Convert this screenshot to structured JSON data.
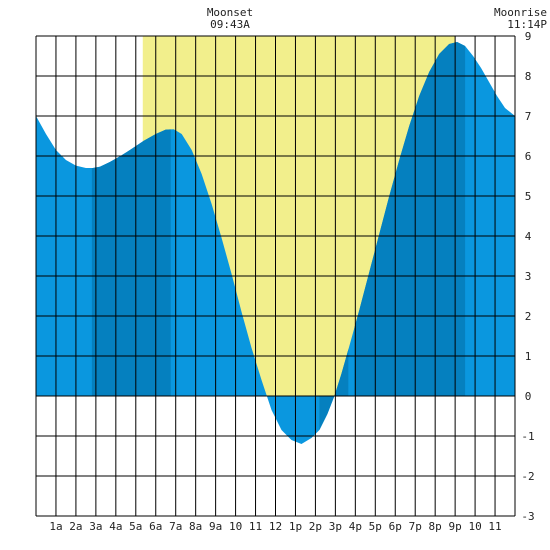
{
  "chart_data": {
    "type": "area",
    "title": "",
    "xlabel": "",
    "ylabel": "",
    "xlim": [
      0,
      24
    ],
    "ylim": [
      -3,
      9
    ],
    "y_ticks": [
      -3,
      -2,
      -1,
      0,
      1,
      2,
      3,
      4,
      5,
      6,
      7,
      8,
      9
    ],
    "x_ticks": [
      {
        "hour": 1,
        "label": "1a"
      },
      {
        "hour": 2,
        "label": "2a"
      },
      {
        "hour": 3,
        "label": "3a"
      },
      {
        "hour": 4,
        "label": "4a"
      },
      {
        "hour": 5,
        "label": "5a"
      },
      {
        "hour": 6,
        "label": "6a"
      },
      {
        "hour": 7,
        "label": "7a"
      },
      {
        "hour": 8,
        "label": "8a"
      },
      {
        "hour": 9,
        "label": "9a"
      },
      {
        "hour": 10,
        "label": "10"
      },
      {
        "hour": 11,
        "label": "11"
      },
      {
        "hour": 12,
        "label": "12"
      },
      {
        "hour": 13,
        "label": "1p"
      },
      {
        "hour": 14,
        "label": "2p"
      },
      {
        "hour": 15,
        "label": "3p"
      },
      {
        "hour": 16,
        "label": "4p"
      },
      {
        "hour": 17,
        "label": "5p"
      },
      {
        "hour": 18,
        "label": "6p"
      },
      {
        "hour": 19,
        "label": "7p"
      },
      {
        "hour": 20,
        "label": "8p"
      },
      {
        "hour": 21,
        "label": "9p"
      },
      {
        "hour": 22,
        "label": "10"
      },
      {
        "hour": 23,
        "label": "11"
      }
    ],
    "grid": true,
    "daylight": {
      "start_hour": 5.35,
      "end_hour": 21.0,
      "color": "#f2ef8c"
    },
    "night_shade_color": "#ffffff",
    "tide_color": "#0a97df",
    "tide_highlight_color": "#0580bf",
    "highlight_bands": [
      [
        2.8,
        6.75
      ],
      [
        14.2,
        15.65
      ],
      [
        15.95,
        21.5
      ]
    ],
    "series": [
      {
        "x": [
          0,
          0.5,
          1,
          1.5,
          2,
          2.5,
          2.85,
          3.2,
          3.7,
          4.2,
          4.8,
          5.4,
          6.0,
          6.5,
          6.9,
          7.3,
          7.8,
          8.3,
          8.8,
          9.3,
          9.8,
          10.3,
          10.8,
          11.3,
          11.8,
          12.3,
          12.8,
          13.3,
          13.8,
          14.2,
          14.6,
          14.95,
          15.3,
          15.7,
          16.2,
          16.7,
          17.2,
          17.7,
          18.2,
          18.7,
          19.2,
          19.7,
          20.2,
          20.7,
          21.1,
          21.5,
          21.9,
          22.3,
          22.7,
          23.1,
          23.5,
          24.0
        ],
        "y": [
          7.0,
          6.55,
          6.15,
          5.9,
          5.76,
          5.7,
          5.7,
          5.73,
          5.85,
          5.99,
          6.18,
          6.38,
          6.55,
          6.66,
          6.67,
          6.55,
          6.15,
          5.55,
          4.8,
          3.95,
          3.05,
          2.1,
          1.2,
          0.4,
          -0.35,
          -0.85,
          -1.1,
          -1.2,
          -1.05,
          -0.85,
          -0.45,
          0.0,
          0.55,
          1.25,
          2.15,
          3.1,
          4.05,
          5.0,
          5.9,
          6.75,
          7.5,
          8.1,
          8.55,
          8.8,
          8.85,
          8.75,
          8.5,
          8.2,
          7.85,
          7.5,
          7.2,
          7.0
        ]
      }
    ],
    "events": [
      {
        "label": "Moonset",
        "time": "09:43A",
        "hour": 9.72,
        "anchor": "middle"
      },
      {
        "label": "Moonrise",
        "time": "11:14P",
        "hour": 23.23,
        "anchor": "end"
      }
    ]
  }
}
